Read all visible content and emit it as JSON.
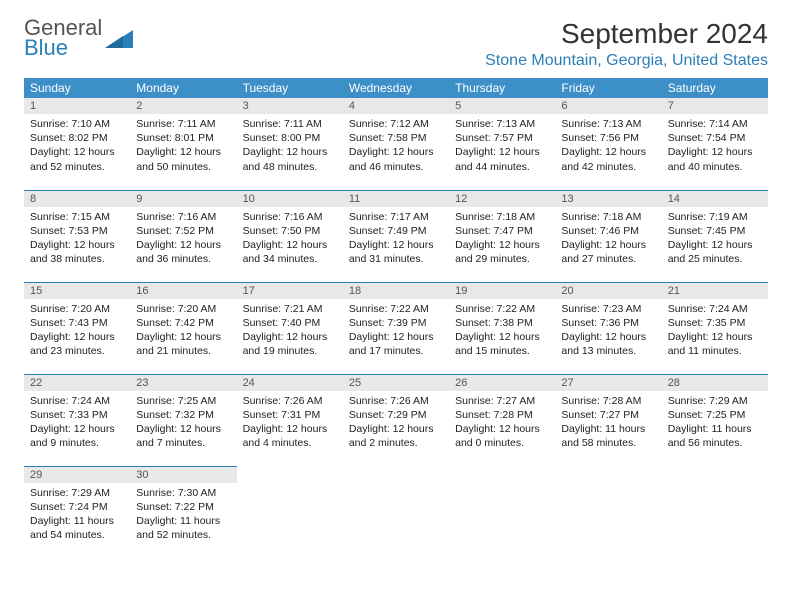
{
  "brand": {
    "name_part1": "General",
    "name_part2": "Blue",
    "logo_color": "#2b7fb8"
  },
  "header": {
    "month_title": "September 2024",
    "location": "Stone Mountain, Georgia, United States"
  },
  "style": {
    "header_bg": "#3d8fc7",
    "header_fg": "#ffffff",
    "daynum_bg": "#e8e8e8",
    "rule_color": "#2b7fb8",
    "location_color": "#2b7fb8"
  },
  "day_names": [
    "Sunday",
    "Monday",
    "Tuesday",
    "Wednesday",
    "Thursday",
    "Friday",
    "Saturday"
  ],
  "weeks": [
    [
      {
        "n": "1",
        "sr": "7:10 AM",
        "ss": "8:02 PM",
        "dl": "12 hours and 52 minutes."
      },
      {
        "n": "2",
        "sr": "7:11 AM",
        "ss": "8:01 PM",
        "dl": "12 hours and 50 minutes."
      },
      {
        "n": "3",
        "sr": "7:11 AM",
        "ss": "8:00 PM",
        "dl": "12 hours and 48 minutes."
      },
      {
        "n": "4",
        "sr": "7:12 AM",
        "ss": "7:58 PM",
        "dl": "12 hours and 46 minutes."
      },
      {
        "n": "5",
        "sr": "7:13 AM",
        "ss": "7:57 PM",
        "dl": "12 hours and 44 minutes."
      },
      {
        "n": "6",
        "sr": "7:13 AM",
        "ss": "7:56 PM",
        "dl": "12 hours and 42 minutes."
      },
      {
        "n": "7",
        "sr": "7:14 AM",
        "ss": "7:54 PM",
        "dl": "12 hours and 40 minutes."
      }
    ],
    [
      {
        "n": "8",
        "sr": "7:15 AM",
        "ss": "7:53 PM",
        "dl": "12 hours and 38 minutes."
      },
      {
        "n": "9",
        "sr": "7:16 AM",
        "ss": "7:52 PM",
        "dl": "12 hours and 36 minutes."
      },
      {
        "n": "10",
        "sr": "7:16 AM",
        "ss": "7:50 PM",
        "dl": "12 hours and 34 minutes."
      },
      {
        "n": "11",
        "sr": "7:17 AM",
        "ss": "7:49 PM",
        "dl": "12 hours and 31 minutes."
      },
      {
        "n": "12",
        "sr": "7:18 AM",
        "ss": "7:47 PM",
        "dl": "12 hours and 29 minutes."
      },
      {
        "n": "13",
        "sr": "7:18 AM",
        "ss": "7:46 PM",
        "dl": "12 hours and 27 minutes."
      },
      {
        "n": "14",
        "sr": "7:19 AM",
        "ss": "7:45 PM",
        "dl": "12 hours and 25 minutes."
      }
    ],
    [
      {
        "n": "15",
        "sr": "7:20 AM",
        "ss": "7:43 PM",
        "dl": "12 hours and 23 minutes."
      },
      {
        "n": "16",
        "sr": "7:20 AM",
        "ss": "7:42 PM",
        "dl": "12 hours and 21 minutes."
      },
      {
        "n": "17",
        "sr": "7:21 AM",
        "ss": "7:40 PM",
        "dl": "12 hours and 19 minutes."
      },
      {
        "n": "18",
        "sr": "7:22 AM",
        "ss": "7:39 PM",
        "dl": "12 hours and 17 minutes."
      },
      {
        "n": "19",
        "sr": "7:22 AM",
        "ss": "7:38 PM",
        "dl": "12 hours and 15 minutes."
      },
      {
        "n": "20",
        "sr": "7:23 AM",
        "ss": "7:36 PM",
        "dl": "12 hours and 13 minutes."
      },
      {
        "n": "21",
        "sr": "7:24 AM",
        "ss": "7:35 PM",
        "dl": "12 hours and 11 minutes."
      }
    ],
    [
      {
        "n": "22",
        "sr": "7:24 AM",
        "ss": "7:33 PM",
        "dl": "12 hours and 9 minutes."
      },
      {
        "n": "23",
        "sr": "7:25 AM",
        "ss": "7:32 PM",
        "dl": "12 hours and 7 minutes."
      },
      {
        "n": "24",
        "sr": "7:26 AM",
        "ss": "7:31 PM",
        "dl": "12 hours and 4 minutes."
      },
      {
        "n": "25",
        "sr": "7:26 AM",
        "ss": "7:29 PM",
        "dl": "12 hours and 2 minutes."
      },
      {
        "n": "26",
        "sr": "7:27 AM",
        "ss": "7:28 PM",
        "dl": "12 hours and 0 minutes."
      },
      {
        "n": "27",
        "sr": "7:28 AM",
        "ss": "7:27 PM",
        "dl": "11 hours and 58 minutes."
      },
      {
        "n": "28",
        "sr": "7:29 AM",
        "ss": "7:25 PM",
        "dl": "11 hours and 56 minutes."
      }
    ],
    [
      {
        "n": "29",
        "sr": "7:29 AM",
        "ss": "7:24 PM",
        "dl": "11 hours and 54 minutes."
      },
      {
        "n": "30",
        "sr": "7:30 AM",
        "ss": "7:22 PM",
        "dl": "11 hours and 52 minutes."
      },
      null,
      null,
      null,
      null,
      null
    ]
  ],
  "labels": {
    "sunrise": "Sunrise:",
    "sunset": "Sunset:",
    "daylight": "Daylight:"
  }
}
